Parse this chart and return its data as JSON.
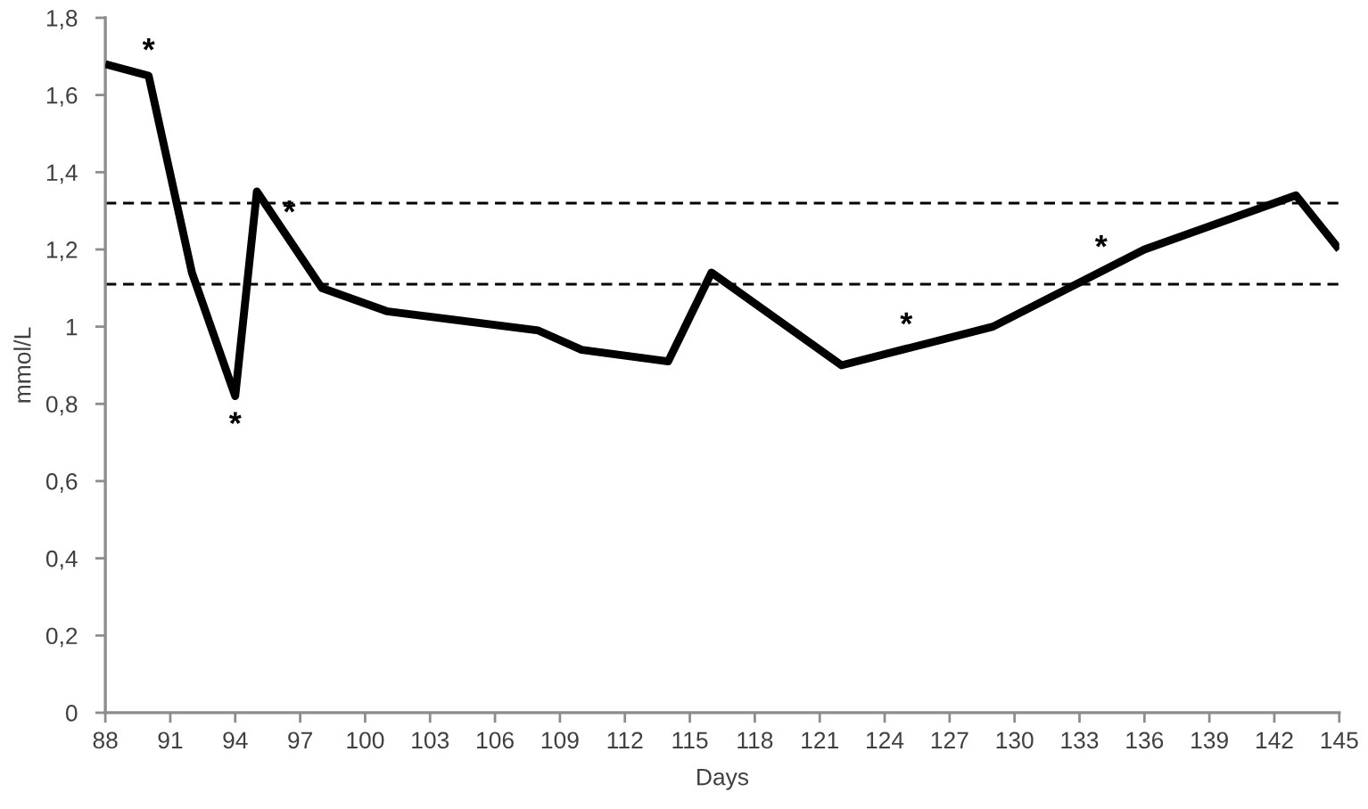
{
  "chart_data": {
    "type": "line",
    "xlabel": "Days",
    "ylabel": "mmol/L",
    "x": [
      88,
      90,
      92,
      94,
      95,
      98,
      101,
      108,
      110,
      114,
      116,
      122,
      129,
      136,
      143,
      145
    ],
    "series": [
      {
        "color": "#000000",
        "values": [
          1.68,
          1.65,
          1.14,
          0.82,
          1.35,
          1.1,
          1.04,
          0.99,
          0.94,
          0.91,
          1.14,
          0.9,
          1.0,
          1.2,
          1.34,
          1.2
        ]
      }
    ],
    "xlim": [
      88,
      145
    ],
    "xticks": [
      88,
      91,
      94,
      97,
      100,
      103,
      106,
      109,
      112,
      115,
      118,
      121,
      124,
      127,
      130,
      133,
      136,
      139,
      142,
      145
    ],
    "ylim": [
      0,
      1.8
    ],
    "yticks": [
      0,
      {
        "value": 0.2,
        "label": "0,2"
      },
      {
        "value": 0.4,
        "label": "0,4"
      },
      {
        "value": 0.6,
        "label": "0,6"
      },
      {
        "value": 0.8,
        "label": "0,8"
      },
      1,
      {
        "value": 1.2,
        "label": "1,2"
      },
      {
        "value": 1.4,
        "label": "1,4"
      },
      {
        "value": 1.6,
        "label": "1,6"
      },
      {
        "value": 1.8,
        "label": "1,8"
      }
    ],
    "ref_lines": [
      {
        "axis": "y",
        "value": 1.32,
        "color": "#000000",
        "line_style": "dashed"
      },
      {
        "axis": "y",
        "value": 1.11,
        "color": "#000000",
        "line_style": "dashed"
      }
    ],
    "annotations": [
      {
        "text": "*",
        "x": 90,
        "y": 1.65
      },
      {
        "text": "*",
        "x": 94,
        "y": 0.82
      },
      {
        "text": "*",
        "x": 96.5,
        "y": 1.23
      },
      {
        "text": "*",
        "x": 125,
        "y": 0.94
      },
      {
        "text": "*",
        "x": 134,
        "y": 1.14
      }
    ],
    "grid": false,
    "marker": "none",
    "line_style": "solid"
  }
}
